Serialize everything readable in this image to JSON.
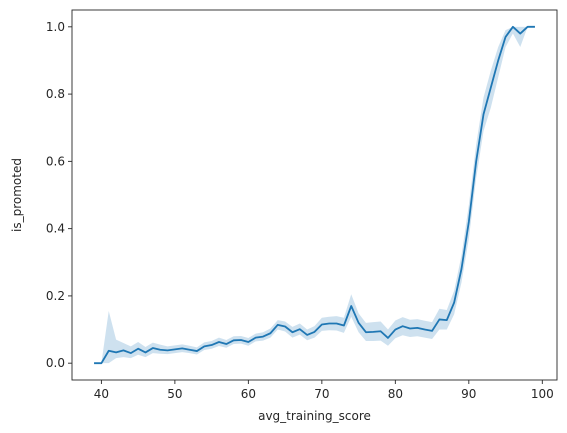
{
  "chart_data": {
    "type": "line",
    "title": "",
    "xlabel": "avg_training_score",
    "ylabel": "is_promoted",
    "xlim": [
      36.0,
      102.0
    ],
    "ylim": [
      -0.05,
      1.05
    ],
    "xticks": [
      40,
      50,
      60,
      70,
      80,
      90,
      100
    ],
    "xtick_labels": [
      "40",
      "50",
      "60",
      "70",
      "80",
      "90",
      "100"
    ],
    "yticks": [
      0.0,
      0.2,
      0.4,
      0.6,
      0.8,
      1.0
    ],
    "ytick_labels": [
      "0.0",
      "0.2",
      "0.4",
      "0.6",
      "0.8",
      "1.0"
    ],
    "grid": false,
    "line_color": "#1f77b4",
    "band_color": "#1f77b4",
    "series": [
      {
        "x": [
          39,
          40,
          41,
          42,
          43,
          44,
          45,
          46,
          47,
          48,
          49,
          50,
          51,
          52,
          53,
          54,
          55,
          56,
          57,
          58,
          59,
          60,
          61,
          62,
          63,
          64,
          65,
          66,
          67,
          68,
          69,
          70,
          71,
          72,
          73,
          74,
          75,
          76,
          77,
          78,
          79,
          80,
          81,
          82,
          83,
          84,
          85,
          86,
          87,
          88,
          89,
          90,
          91,
          92,
          93,
          94,
          95,
          96,
          97,
          98,
          99
        ],
        "values": [
          0.0,
          0.0,
          0.037,
          0.032,
          0.038,
          0.03,
          0.043,
          0.032,
          0.045,
          0.04,
          0.038,
          0.041,
          0.044,
          0.04,
          0.036,
          0.05,
          0.054,
          0.063,
          0.057,
          0.068,
          0.069,
          0.063,
          0.076,
          0.079,
          0.089,
          0.114,
          0.109,
          0.092,
          0.101,
          0.084,
          0.093,
          0.115,
          0.118,
          0.118,
          0.112,
          0.17,
          0.12,
          0.092,
          0.093,
          0.095,
          0.075,
          0.1,
          0.11,
          0.103,
          0.105,
          0.1,
          0.096,
          0.13,
          0.128,
          0.18,
          0.28,
          0.42,
          0.6,
          0.74,
          0.82,
          0.9,
          0.97,
          1.0,
          0.98,
          1.0,
          1.0
        ],
        "ci_lower": [
          0.0,
          0.0,
          0.0,
          0.015,
          0.018,
          0.015,
          0.025,
          0.018,
          0.03,
          0.028,
          0.027,
          0.03,
          0.033,
          0.03,
          0.026,
          0.039,
          0.043,
          0.051,
          0.046,
          0.057,
          0.058,
          0.052,
          0.065,
          0.067,
          0.076,
          0.1,
          0.094,
          0.076,
          0.085,
          0.068,
          0.076,
          0.096,
          0.098,
          0.097,
          0.09,
          0.138,
          0.092,
          0.066,
          0.066,
          0.067,
          0.052,
          0.074,
          0.083,
          0.078,
          0.08,
          0.076,
          0.072,
          0.1,
          0.1,
          0.145,
          0.24,
          0.37,
          0.55,
          0.69,
          0.76,
          0.85,
          0.94,
          0.98,
          0.94,
          1.0,
          1.0
        ],
        "ci_upper": [
          0.0,
          0.0,
          0.155,
          0.07,
          0.06,
          0.05,
          0.063,
          0.048,
          0.061,
          0.055,
          0.05,
          0.053,
          0.056,
          0.052,
          0.047,
          0.062,
          0.066,
          0.076,
          0.069,
          0.08,
          0.081,
          0.075,
          0.088,
          0.092,
          0.103,
          0.128,
          0.124,
          0.108,
          0.118,
          0.1,
          0.11,
          0.135,
          0.138,
          0.14,
          0.135,
          0.205,
          0.148,
          0.12,
          0.122,
          0.124,
          0.1,
          0.127,
          0.137,
          0.129,
          0.131,
          0.126,
          0.122,
          0.162,
          0.158,
          0.215,
          0.32,
          0.47,
          0.65,
          0.79,
          0.87,
          0.94,
          0.99,
          1.0,
          1.0,
          1.0,
          1.0
        ]
      }
    ]
  }
}
